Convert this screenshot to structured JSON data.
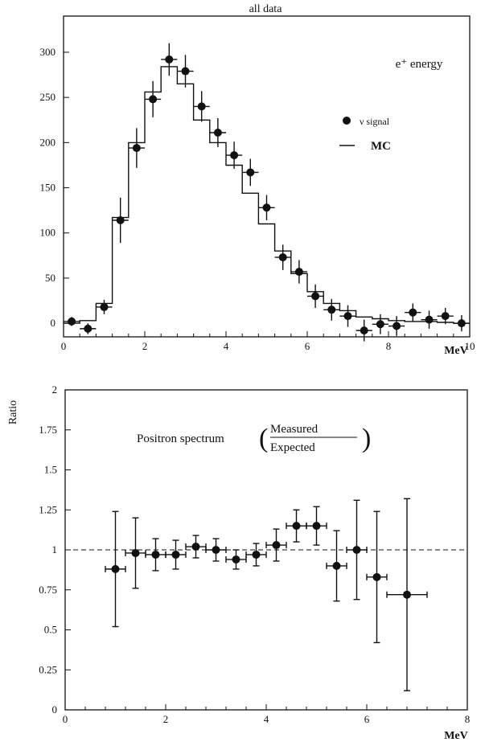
{
  "chart_data": [
    {
      "type": "scatter",
      "title": "all data",
      "annotation": "e⁺ energy",
      "xlabel": "MeV",
      "ylabel": "",
      "xlim": [
        0,
        10
      ],
      "ylim": [
        -15,
        340
      ],
      "grid": false,
      "legend_position": "right",
      "x_ticks": [
        "0",
        "2",
        "4",
        "6",
        "8",
        "10"
      ],
      "y_ticks": [
        "0",
        "50",
        "100",
        "150",
        "200",
        "250",
        "300"
      ],
      "x_tick_values": [
        0,
        2,
        4,
        6,
        8,
        10
      ],
      "y_tick_values": [
        0,
        50,
        100,
        150,
        200,
        250,
        300
      ],
      "series": [
        {
          "name": "ν signal",
          "kind": "points",
          "x": [
            0.2,
            0.6,
            1.0,
            1.4,
            1.8,
            2.2,
            2.6,
            3.0,
            3.4,
            3.8,
            4.2,
            4.6,
            5.0,
            5.4,
            5.8,
            6.2,
            6.6,
            7.0,
            7.4,
            7.8,
            8.2,
            8.6,
            9.0,
            9.4,
            9.8
          ],
          "y": [
            2,
            -6,
            18,
            114,
            194,
            248,
            292,
            279,
            240,
            211,
            186,
            167,
            128,
            73,
            57,
            30,
            15,
            8,
            -8,
            -1,
            -3,
            12,
            4,
            8,
            0
          ],
          "x_err": 0.2,
          "y_err": [
            5,
            6,
            8,
            25,
            22,
            20,
            18,
            18,
            17,
            16,
            15,
            15,
            14,
            14,
            13,
            13,
            12,
            12,
            12,
            11,
            11,
            10,
            10,
            9,
            9
          ]
        },
        {
          "name": "MC",
          "kind": "step",
          "bin_edges": [
            0,
            0.4,
            0.8,
            1.2,
            1.6,
            2.0,
            2.4,
            2.8,
            3.2,
            3.6,
            4.0,
            4.4,
            4.8,
            5.2,
            5.6,
            6.0,
            6.4,
            6.8,
            7.2,
            7.6,
            8.0,
            8.4,
            8.8,
            9.2,
            9.6,
            10.0
          ],
          "values": [
            0,
            3,
            22,
            117,
            200,
            256,
            284,
            265,
            225,
            200,
            175,
            144,
            110,
            80,
            55,
            35,
            22,
            14,
            7,
            5,
            3,
            2,
            2,
            1,
            0
          ]
        }
      ]
    },
    {
      "type": "scatter",
      "title": "",
      "annotation": "Positron spectrum",
      "fraction_numerator": "Measured",
      "fraction_denominator": "Expected",
      "xlabel": "MeV",
      "ylabel": "Ratio",
      "xlim": [
        0,
        8
      ],
      "ylim": [
        0,
        2
      ],
      "grid": false,
      "reference_line": 1,
      "x_ticks": [
        "0",
        "2",
        "4",
        "6",
        "8"
      ],
      "y_ticks": [
        "0",
        "0.25",
        "0.5",
        "0.75",
        "1",
        "1.25",
        "1.5",
        "1.75",
        "2"
      ],
      "x_tick_values": [
        0,
        2,
        4,
        6,
        8
      ],
      "y_tick_values": [
        0,
        0.25,
        0.5,
        0.75,
        1,
        1.25,
        1.5,
        1.75,
        2
      ],
      "series": [
        {
          "name": "",
          "kind": "points",
          "x": [
            1.0,
            1.4,
            1.8,
            2.2,
            2.6,
            3.0,
            3.4,
            3.8,
            4.2,
            4.6,
            5.0,
            5.4,
            5.8,
            6.2,
            6.8
          ],
          "y": [
            0.88,
            0.98,
            0.97,
            0.97,
            1.02,
            1.0,
            0.94,
            0.97,
            1.03,
            1.15,
            1.15,
            0.9,
            1.0,
            0.83,
            0.72
          ],
          "x_err": [
            0.2,
            0.2,
            0.2,
            0.2,
            0.2,
            0.2,
            0.2,
            0.2,
            0.2,
            0.2,
            0.2,
            0.2,
            0.2,
            0.2,
            0.4
          ],
          "y_err": [
            0.36,
            0.22,
            0.1,
            0.09,
            0.07,
            0.07,
            0.06,
            0.07,
            0.1,
            0.1,
            0.12,
            0.22,
            0.31,
            0.41,
            0.6
          ]
        }
      ]
    }
  ]
}
